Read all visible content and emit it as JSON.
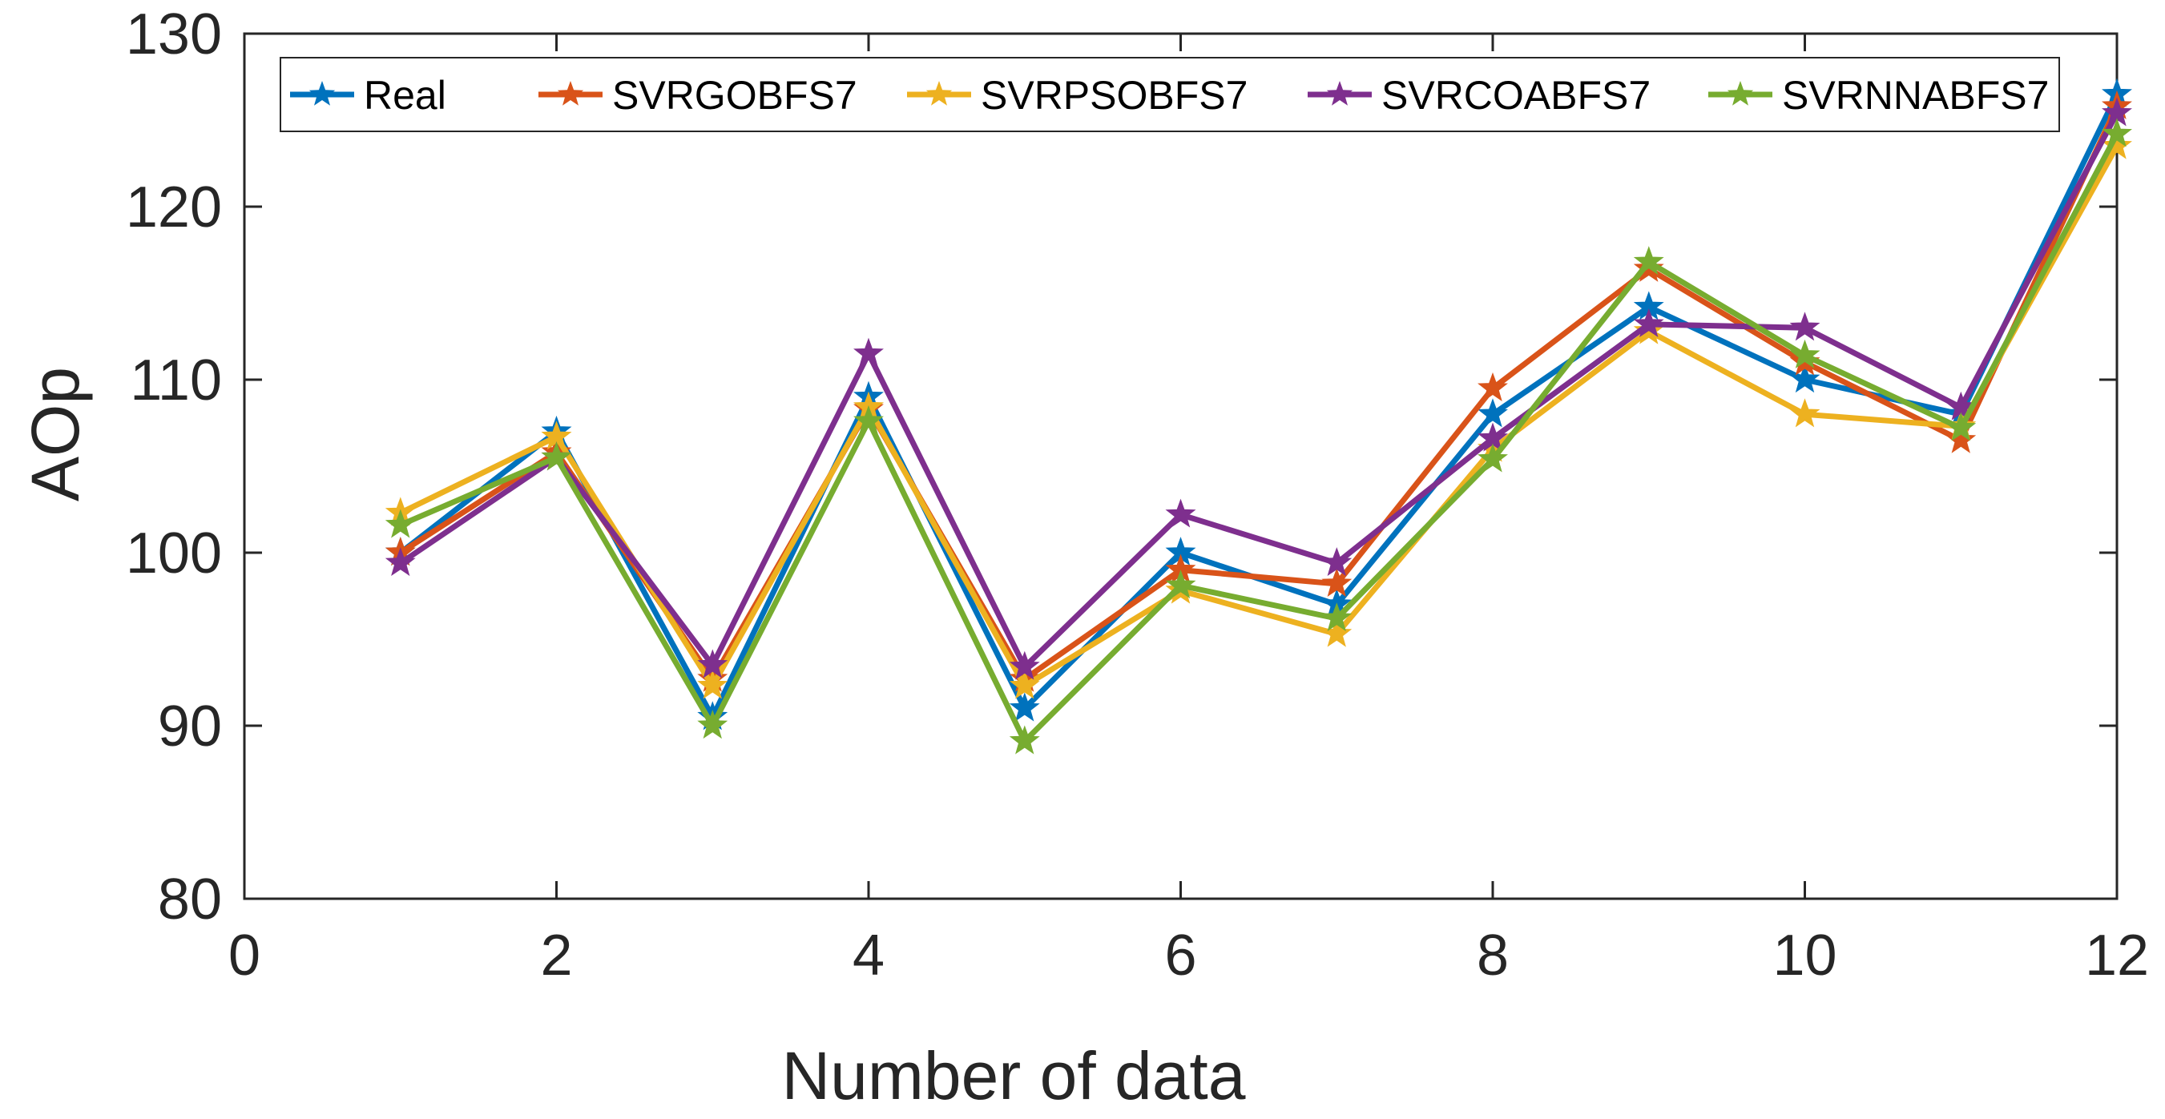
{
  "chart_data": {
    "type": "line",
    "title": "",
    "xlabel": "Number of data",
    "ylabel": "AOp",
    "xlim": [
      0,
      12
    ],
    "ylim": [
      80,
      130
    ],
    "xticks": [
      0,
      2,
      4,
      6,
      8,
      10,
      12
    ],
    "yticks": [
      80,
      90,
      100,
      110,
      120,
      130
    ],
    "grid": false,
    "legend_position": "top",
    "x": [
      1,
      2,
      3,
      4,
      5,
      6,
      7,
      8,
      9,
      10,
      11,
      12
    ],
    "series": [
      {
        "name": "Real",
        "color": "#0072BD",
        "values": [
          100,
          107,
          90.5,
          109,
          91,
          100,
          97,
          108,
          114.2,
          110,
          108,
          126.5
        ]
      },
      {
        "name": "SVRGOBFS7",
        "color": "#D95319",
        "values": [
          100,
          105.8,
          92.7,
          108.3,
          92.7,
          99,
          98.2,
          109.5,
          116.4,
          111,
          106.5,
          125.8
        ]
      },
      {
        "name": "SVRPSOBFS7",
        "color": "#EDB120",
        "values": [
          102.3,
          106.7,
          92.3,
          108.4,
          92.3,
          97.8,
          95.3,
          106,
          112.8,
          108,
          107.3,
          123.5
        ]
      },
      {
        "name": "SVRCOABFS7",
        "color": "#7E2F8E",
        "values": [
          99.4,
          105.5,
          93.5,
          111.5,
          93.4,
          102.2,
          99.4,
          106.6,
          113.2,
          113,
          108.4,
          125.4
        ]
      },
      {
        "name": "SVRNNABFS7",
        "color": "#77AC30",
        "values": [
          101.6,
          105.5,
          90,
          107.6,
          89.1,
          98.1,
          96.2,
          105.4,
          116.8,
          111.4,
          107.2,
          124.2
        ]
      }
    ]
  }
}
